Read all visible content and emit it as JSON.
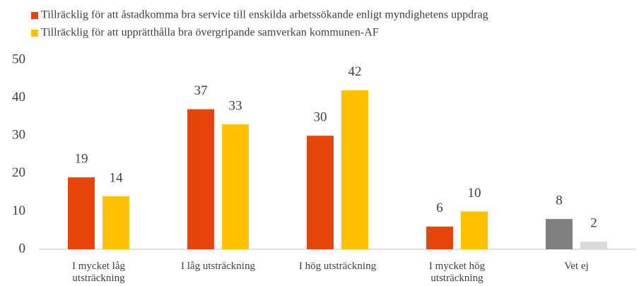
{
  "chart_data": {
    "type": "bar",
    "categories": [
      "I mycket låg utsträckning",
      "I låg utsträckning",
      "I hög utsträckning",
      "I mycket hög utsträckning",
      "Vet ej"
    ],
    "series": [
      {
        "name": "Tillräcklig för att åstadkomma bra service till enskilda arbetssökande enligt myndighetens uppdrag",
        "color": "#e8450a",
        "colors": [
          "#e8450a",
          "#e8450a",
          "#e8450a",
          "#e8450a",
          "#7f7f7f"
        ],
        "values": [
          19,
          37,
          30,
          6,
          8
        ]
      },
      {
        "name": "Tillräcklig för att upprätthålla bra övergripande samverkan kommunen-AF",
        "color": "#ffc000",
        "colors": [
          "#ffc000",
          "#ffc000",
          "#ffc000",
          "#ffc000",
          "#d9d9d9"
        ],
        "values": [
          14,
          33,
          42,
          10,
          2
        ]
      }
    ],
    "ylim": [
      0,
      50
    ],
    "yticks": [
      0,
      10,
      20,
      30,
      40,
      50
    ],
    "grid": false,
    "legend": "top"
  }
}
